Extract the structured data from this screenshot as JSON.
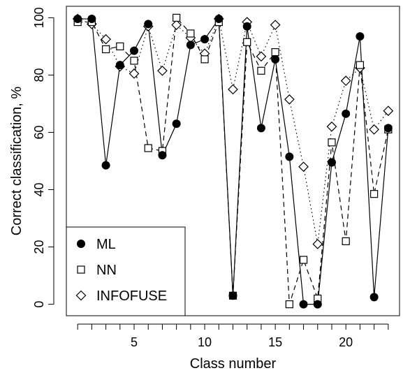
{
  "chart_data": {
    "type": "line",
    "xlabel": "Class number",
    "ylabel": "Correct classification, %",
    "xlim": [
      0.2,
      23.8
    ],
    "ylim": [
      -4,
      104
    ],
    "xticks": [
      5,
      10,
      15,
      20
    ],
    "xtick_marks": [
      1,
      2,
      3,
      4,
      5,
      6,
      7,
      8,
      9,
      10,
      11,
      12,
      13,
      14,
      15,
      16,
      17,
      18,
      19,
      20,
      21,
      22,
      23
    ],
    "yticks": [
      0,
      20,
      40,
      60,
      80,
      100
    ],
    "x": [
      1,
      2,
      3,
      4,
      5,
      6,
      7,
      8,
      9,
      10,
      11,
      12,
      13,
      14,
      15,
      16,
      17,
      18,
      19,
      20,
      21,
      22,
      23
    ],
    "legend_position": "bottom-left",
    "series": [
      {
        "name": "ML",
        "marker": "filled-circle",
        "line": "solid",
        "values": [
          99.6,
          99.6,
          48.5,
          83.5,
          88.5,
          97.8,
          52.0,
          63.0,
          90.5,
          92.5,
          99.6,
          3.0,
          97.0,
          61.5,
          85.5,
          51.5,
          0.0,
          0.0,
          49.5,
          66.5,
          93.5,
          2.5,
          61.5
        ]
      },
      {
        "name": "NN",
        "marker": "open-square",
        "line": "dashed",
        "values": [
          98.5,
          98.5,
          89.0,
          90.0,
          85.0,
          54.5,
          53.5,
          100.0,
          94.5,
          85.5,
          98.5,
          3.0,
          91.5,
          81.5,
          88.0,
          0.0,
          15.5,
          2.0,
          56.5,
          22.0,
          83.5,
          38.5,
          61.0
        ]
      },
      {
        "name": "INFOFUSE",
        "marker": "open-diamond",
        "line": "dotted",
        "values": [
          99.6,
          97.8,
          92.5,
          83.0,
          80.5,
          97.0,
          81.5,
          97.5,
          93.0,
          87.5,
          99.6,
          75.0,
          98.5,
          86.5,
          97.5,
          71.5,
          48.0,
          21.0,
          62.0,
          78.0,
          82.5,
          61.0,
          67.5
        ]
      }
    ]
  }
}
